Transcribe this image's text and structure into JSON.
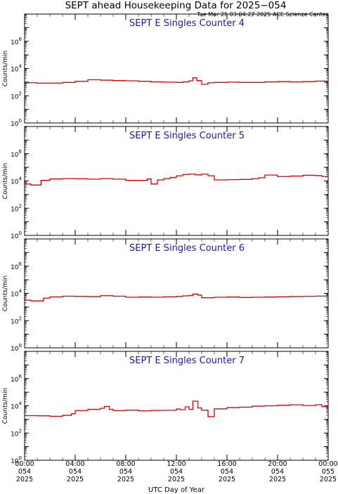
{
  "header": {
    "title": "SEPT ahead Housekeeping Data for 2025−054",
    "timestamp": "Tue Mar 25 03:04:27 2025 ACE Science Center"
  },
  "xaxis": {
    "label": "UTC Day of Year",
    "ticks": [
      {
        "hours": 0,
        "line1": "00:00",
        "line2": "054",
        "line3": "2025"
      },
      {
        "hours": 4,
        "line1": "04:00",
        "line2": "054",
        "line3": "2025"
      },
      {
        "hours": 8,
        "line1": "08:00",
        "line2": "054",
        "line3": "2025"
      },
      {
        "hours": 12,
        "line1": "12:00",
        "line2": "054",
        "line3": "2025"
      },
      {
        "hours": 16,
        "line1": "16:00",
        "line2": "054",
        "line3": "2025"
      },
      {
        "hours": 20,
        "line1": "20:00",
        "line2": "054",
        "line3": "2025"
      },
      {
        "hours": 24,
        "line1": "00:00",
        "line2": "055",
        "line3": "2025"
      }
    ]
  },
  "colors": {
    "data": "#dd0000",
    "panel_title": "#1a1aa6",
    "axes": "#000000"
  },
  "chart_data": [
    {
      "type": "line",
      "title": "SEPT E Singles Counter 4",
      "ylabel": "Counts/min",
      "yscale": "log",
      "ylim": [
        1,
        100000000
      ],
      "xlim": [
        0,
        24
      ],
      "x_unit": "hours UTC",
      "yticks": [
        {
          "value": 1,
          "base": "10",
          "exp": "0"
        },
        {
          "value": 100,
          "base": "10",
          "exp": "2"
        },
        {
          "value": 10000,
          "base": "10",
          "exp": "4"
        },
        {
          "value": 1000000,
          "base": "10",
          "exp": "6"
        }
      ],
      "x": [
        0,
        1,
        2,
        3,
        4,
        5,
        6,
        7,
        8,
        9,
        10,
        11,
        12,
        12.5,
        13,
        13.3,
        13.6,
        14,
        14.5,
        15,
        16,
        17,
        18,
        19,
        20,
        21,
        22,
        23,
        24
      ],
      "values": [
        900,
        850,
        850,
        950,
        1150,
        1500,
        1400,
        1300,
        1250,
        1150,
        1050,
        1000,
        950,
        1050,
        1250,
        2100,
        1300,
        700,
        900,
        950,
        1000,
        950,
        950,
        1050,
        1100,
        1050,
        1100,
        1200,
        1150
      ]
    },
    {
      "type": "line",
      "title": "SEPT E Singles Counter 5",
      "ylabel": "Counts/min",
      "yscale": "log",
      "ylim": [
        1,
        100000000
      ],
      "xlim": [
        0,
        24
      ],
      "x_unit": "hours UTC",
      "yticks": [
        {
          "value": 1,
          "base": "10",
          "exp": "0"
        },
        {
          "value": 100,
          "base": "10",
          "exp": "2"
        },
        {
          "value": 10000,
          "base": "10",
          "exp": "4"
        },
        {
          "value": 1000000,
          "base": "10",
          "exp": "6"
        }
      ],
      "x": [
        0,
        0.5,
        1,
        1.3,
        2,
        3,
        4,
        5,
        6,
        7,
        8,
        9,
        9.7,
        10,
        10.5,
        11,
        11.5,
        12,
        12.5,
        13,
        13.5,
        14,
        14.5,
        15,
        16,
        17,
        18,
        18.5,
        19,
        20,
        21,
        22,
        23,
        23.5,
        24
      ],
      "values": [
        6000,
        5000,
        5000,
        11000,
        14000,
        15000,
        14500,
        13500,
        15000,
        13500,
        11000,
        11000,
        14000,
        6000,
        12000,
        15000,
        18000,
        24000,
        30000,
        32000,
        28000,
        32000,
        24000,
        12000,
        12500,
        13000,
        15000,
        17000,
        27000,
        21000,
        23000,
        26000,
        25000,
        21000,
        18000
      ]
    },
    {
      "type": "line",
      "title": "SEPT E Singles Counter 6",
      "ylabel": "Counts/min",
      "yscale": "log",
      "ylim": [
        1,
        100000000
      ],
      "xlim": [
        0,
        24
      ],
      "x_unit": "hours UTC",
      "yticks": [
        {
          "value": 1,
          "base": "10",
          "exp": "0"
        },
        {
          "value": 100,
          "base": "10",
          "exp": "2"
        },
        {
          "value": 10000,
          "base": "10",
          "exp": "4"
        },
        {
          "value": 1000000,
          "base": "10",
          "exp": "6"
        }
      ],
      "x": [
        0,
        0.5,
        1,
        1.5,
        2,
        3,
        4,
        5,
        6,
        7,
        8,
        9,
        10,
        11,
        12,
        12.5,
        13,
        13.3,
        13.7,
        14,
        15,
        16,
        17,
        18,
        19,
        20,
        21,
        22,
        23,
        24
      ],
      "values": [
        3200,
        2800,
        2800,
        4500,
        5500,
        6200,
        6000,
        5800,
        6800,
        6200,
        5200,
        5400,
        5300,
        5600,
        6000,
        6600,
        7000,
        9000,
        7500,
        4800,
        5200,
        5400,
        5000,
        5200,
        5400,
        5600,
        5900,
        6100,
        6300,
        6500
      ]
    },
    {
      "type": "line",
      "title": "SEPT E Singles Counter 7",
      "ylabel": "Counts/min",
      "yscale": "log",
      "ylim": [
        1,
        100000000
      ],
      "xlim": [
        0,
        24
      ],
      "x_unit": "hours UTC",
      "yticks": [
        {
          "value": 1,
          "base": "10",
          "exp": "0"
        },
        {
          "value": 100,
          "base": "10",
          "exp": "2"
        },
        {
          "value": 10000,
          "base": "10",
          "exp": "4"
        },
        {
          "value": 1000000,
          "base": "10",
          "exp": "6"
        }
      ],
      "x": [
        0,
        1,
        2,
        3,
        3.7,
        4,
        5,
        6,
        6.3,
        6.7,
        7,
        8,
        9,
        10,
        11,
        12,
        12.3,
        12.7,
        13,
        13.3,
        13.7,
        14,
        14.5,
        15,
        16,
        17,
        18,
        19,
        20,
        21,
        22,
        23,
        23.5,
        24
      ],
      "values": [
        1900,
        1850,
        1700,
        2000,
        2600,
        4500,
        5500,
        6500,
        9000,
        5500,
        4500,
        4800,
        4300,
        4600,
        4700,
        5800,
        5200,
        8500,
        5500,
        22000,
        7000,
        4800,
        1600,
        6000,
        7500,
        8000,
        9500,
        10000,
        11000,
        12000,
        10500,
        12000,
        8500,
        11000
      ]
    }
  ]
}
